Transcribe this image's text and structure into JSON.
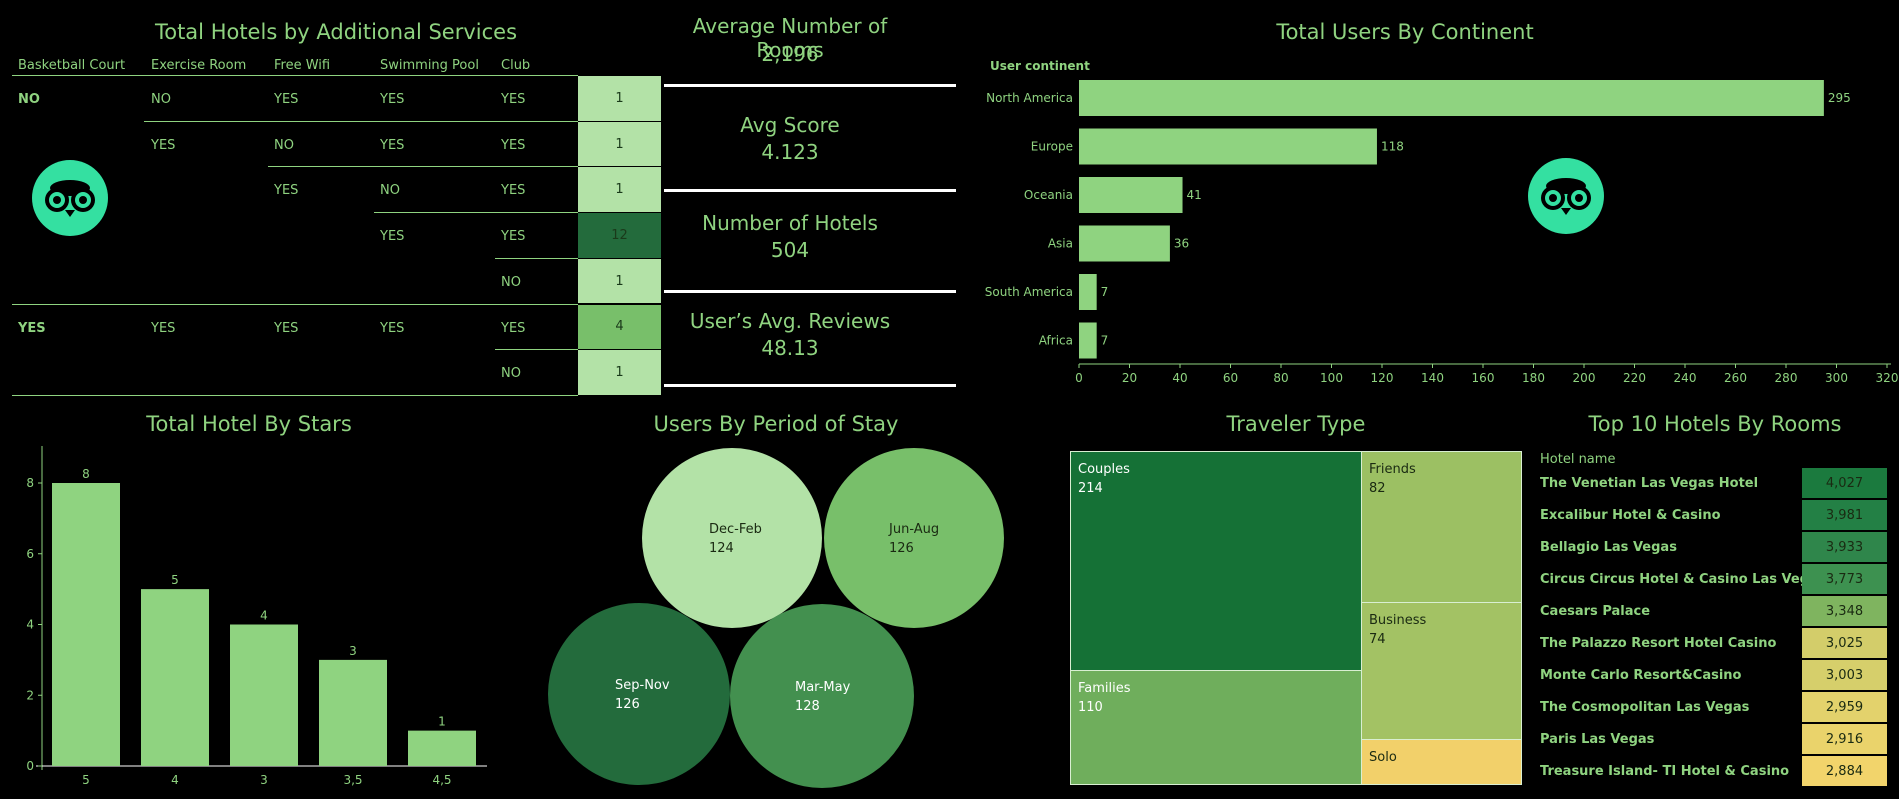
{
  "services": {
    "title": "Total Hotels by Additional Services",
    "headers": [
      "Basketball Court",
      "Exercise Room",
      "Free Wifi",
      "Swimming Pool",
      "Club"
    ],
    "rows": [
      {
        "basketball": "NO",
        "exercise": "NO",
        "wifi": "YES",
        "pool": "YES",
        "club": "YES",
        "count": "1",
        "color": "#b3e2a7"
      },
      {
        "basketball": "",
        "exercise": "YES",
        "wifi": "NO",
        "pool": "YES",
        "club": "YES",
        "count": "1",
        "color": "#b3e2a7"
      },
      {
        "basketball": "",
        "exercise": "",
        "wifi": "YES",
        "pool": "NO",
        "club": "YES",
        "count": "1",
        "color": "#b3e2a7"
      },
      {
        "basketball": "",
        "exercise": "",
        "wifi": "",
        "pool": "YES",
        "club": "YES",
        "count": "12",
        "color": "#236b3c"
      },
      {
        "basketball": "",
        "exercise": "",
        "wifi": "",
        "pool": "",
        "club": "NO",
        "count": "1",
        "color": "#b3e2a7"
      },
      {
        "basketball": "YES",
        "exercise": "YES",
        "wifi": "YES",
        "pool": "YES",
        "club": "YES",
        "count": "4",
        "color": "#78bf6a"
      },
      {
        "basketball": "",
        "exercise": "",
        "wifi": "",
        "pool": "",
        "club": "NO",
        "count": "1",
        "color": "#b3e2a7"
      }
    ]
  },
  "kpis": [
    {
      "label": "Average Number of Rooms",
      "value": "2,196"
    },
    {
      "label": "Avg Score",
      "value": "4.123"
    },
    {
      "label": "Number of Hotels",
      "value": "504"
    },
    {
      "label": "User’s Avg. Reviews",
      "value": "48.13"
    }
  ],
  "continent": {
    "title": "Total Users By Continent",
    "header": "User continent"
  },
  "stars": {
    "title": "Total Hotel By Stars"
  },
  "period": {
    "title": "Users By Period of Stay",
    "bubbles": [
      {
        "label": "Dec-Feb",
        "value": "124",
        "color": "#b3e2a7",
        "text_color": "#1a2a12"
      },
      {
        "label": "Jun-Aug",
        "value": "126",
        "color": "#78bf6a",
        "text_color": "#1a2a12"
      },
      {
        "label": "Sep-Nov",
        "value": "126",
        "color": "#236b3c",
        "text_color": "#ffffff"
      },
      {
        "label": "Mar-May",
        "value": "128",
        "color": "#43904f",
        "text_color": "#ffffff"
      }
    ]
  },
  "traveler": {
    "title": "Traveler Type",
    "cells": [
      {
        "label": "Couples",
        "value": "214",
        "color": "#157136"
      },
      {
        "label": "Families",
        "value": "110",
        "color": "#6fae5c"
      },
      {
        "label": "Friends",
        "value": "82",
        "color": "#9cc063"
      },
      {
        "label": "Business",
        "value": "74",
        "color": "#a3c264"
      },
      {
        "label": "Solo",
        "value": "",
        "color": "#f2d06a"
      }
    ]
  },
  "top10": {
    "title": "Top 10 Hotels By Rooms",
    "header": "Hotel name",
    "rows": [
      {
        "name": "The Venetian Las Vegas Hotel",
        "value": "4,027",
        "color": "#1b7a3e"
      },
      {
        "name": "Excalibur Hotel & Casino",
        "value": "3,981",
        "color": "#238045"
      },
      {
        "name": "Bellagio Las Vegas",
        "value": "3,933",
        "color": "#2f864b"
      },
      {
        "name": "Circus Circus Hotel & Casino Las Vegas",
        "value": "3,773",
        "color": "#3d9150"
      },
      {
        "name": "Caesars Palace",
        "value": "3,348",
        "color": "#7fb45f"
      },
      {
        "name": "The Palazzo Resort Hotel Casino",
        "value": "3,025",
        "color": "#d3cd6a"
      },
      {
        "name": "Monte Carlo Resort&Casino",
        "value": "3,003",
        "color": "#d6cf6b"
      },
      {
        "name": "The Cosmopolitan Las Vegas",
        "value": "2,959",
        "color": "#e3d26c"
      },
      {
        "name": "Paris Las Vegas",
        "value": "2,916",
        "color": "#ead36b"
      },
      {
        "name": "Treasure Island- TI Hotel & Casino",
        "value": "2,884",
        "color": "#f2d46b"
      }
    ]
  },
  "chart_data": [
    {
      "type": "bar",
      "orientation": "horizontal",
      "title": "Total Users By Continent",
      "ylabel": "User continent",
      "categories": [
        "North America",
        "Europe",
        "Oceania",
        "Asia",
        "South America",
        "Africa"
      ],
      "values": [
        295,
        118,
        41,
        36,
        7,
        7
      ],
      "xlim": [
        0,
        320
      ],
      "xticks": [
        0,
        20,
        40,
        60,
        80,
        100,
        120,
        140,
        160,
        180,
        200,
        220,
        240,
        260,
        280,
        300,
        320
      ],
      "color": "#8fd380"
    },
    {
      "type": "bar",
      "title": "Total Hotel By Stars",
      "categories": [
        "5",
        "4",
        "3",
        "3,5",
        "4,5"
      ],
      "values": [
        8,
        5,
        4,
        3,
        1
      ],
      "ylim": [
        0,
        8
      ],
      "yticks": [
        0,
        2,
        4,
        6,
        8
      ],
      "color": "#8fd380"
    }
  ]
}
